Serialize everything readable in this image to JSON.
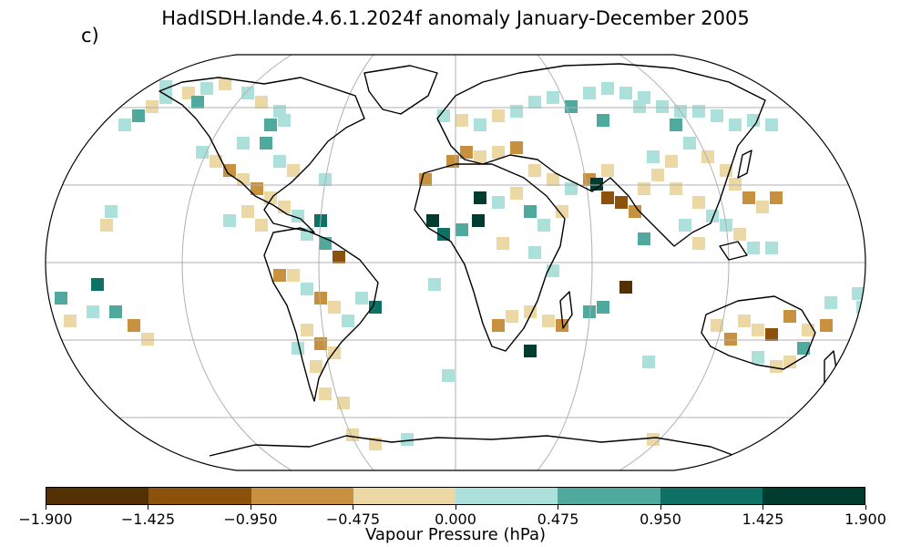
{
  "title": "HadISDH.lande.4.6.1.2024f anomaly January-December 2005",
  "panel_label": "c)",
  "colorbar": {
    "label": "Vapour Pressure (hPa)",
    "ticks": [
      "−1.900",
      "−1.425",
      "−0.950",
      "−0.475",
      "0.000",
      "0.475",
      "0.950",
      "1.425",
      "1.900"
    ],
    "colors": [
      "#543005",
      "#8c510a",
      "#c7913f",
      "#ecd8a4",
      "#ace0da",
      "#4fa99d",
      "#0f7066",
      "#003c30"
    ]
  },
  "map": {
    "projection": "Robinson",
    "graticule": "gray",
    "coastlines": "black"
  }
}
